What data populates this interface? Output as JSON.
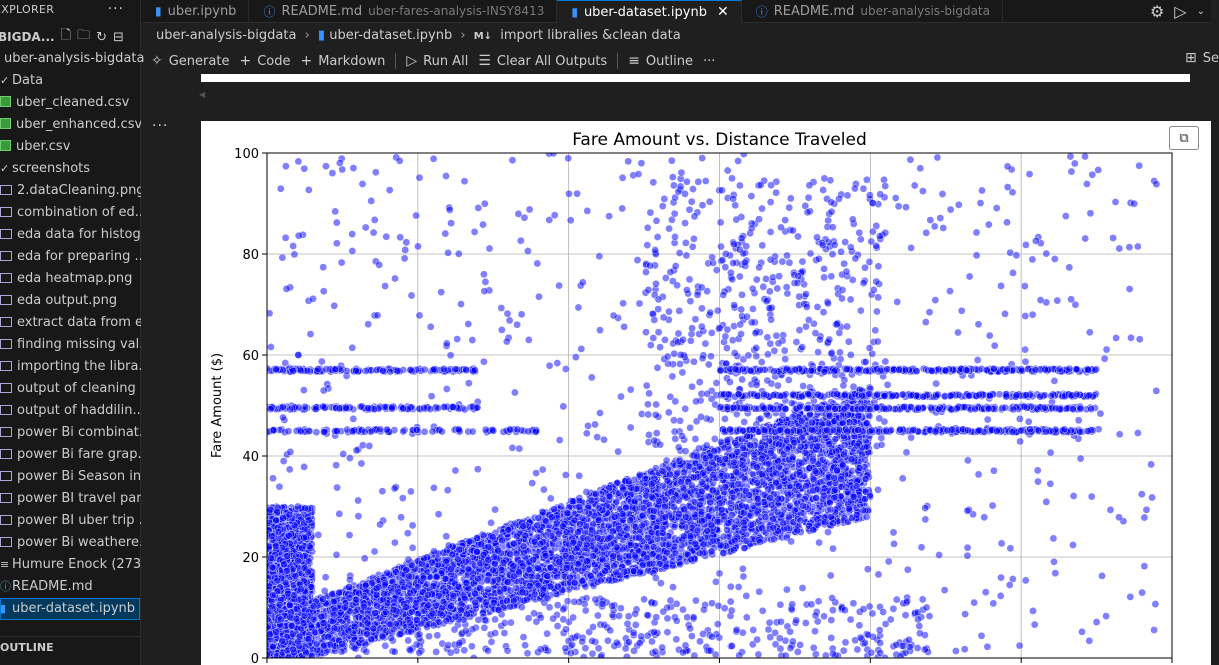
{
  "sidebar": {
    "header_label": "EXPLORER",
    "more_label": "···",
    "workspace_label": "BIGDA...",
    "toolbar_icons": [
      "new-file-icon",
      "new-folder-icon",
      "refresh-icon",
      "collapse-all-icon"
    ],
    "root_folder": "uber-analysis-bigdata",
    "items": [
      {
        "label": "Data",
        "kind": "folder",
        "indent": 0
      },
      {
        "label": "uber_cleaned.csv",
        "kind": "csv",
        "indent": 1
      },
      {
        "label": "uber_enhanced.csv",
        "kind": "csv",
        "indent": 1
      },
      {
        "label": "uber.csv",
        "kind": "csv",
        "indent": 1
      },
      {
        "label": "screenshots",
        "kind": "folder",
        "indent": 0
      },
      {
        "label": "2.dataCleaning.png",
        "kind": "png",
        "indent": 1
      },
      {
        "label": "combination of ed...",
        "kind": "png",
        "indent": 1
      },
      {
        "label": "eda data for histog...",
        "kind": "png",
        "indent": 1
      },
      {
        "label": "eda for preparing ...",
        "kind": "png",
        "indent": 1
      },
      {
        "label": "eda heatmap.png",
        "kind": "png",
        "indent": 1
      },
      {
        "label": "eda output.png",
        "kind": "png",
        "indent": 1
      },
      {
        "label": "extract data from e...",
        "kind": "png",
        "indent": 1
      },
      {
        "label": "finding missing val...",
        "kind": "png",
        "indent": 1
      },
      {
        "label": "importing the libra...",
        "kind": "png",
        "indent": 1
      },
      {
        "label": "output of cleaning ...",
        "kind": "png",
        "indent": 1
      },
      {
        "label": "output of haddilin...",
        "kind": "png",
        "indent": 1
      },
      {
        "label": "power Bi combinat...",
        "kind": "png",
        "indent": 1
      },
      {
        "label": "power Bi fare grap...",
        "kind": "png",
        "indent": 1
      },
      {
        "label": "power Bi Season in...",
        "kind": "png",
        "indent": 1
      },
      {
        "label": "power BI travel par...",
        "kind": "png",
        "indent": 1
      },
      {
        "label": "power BI uber trip ...",
        "kind": "png",
        "indent": 1
      },
      {
        "label": "power Bi weathere...",
        "kind": "png",
        "indent": 1
      },
      {
        "label": "Humure Enock (273...",
        "kind": "item",
        "indent": 0
      },
      {
        "label": "README.md",
        "kind": "md",
        "indent": 0
      },
      {
        "label": "uber-dataset.ipynb",
        "kind": "nb",
        "indent": 0,
        "selected": true
      }
    ],
    "outline_label": "OUTLINE"
  },
  "tabs": [
    {
      "label": "uber.ipynb",
      "desc": "",
      "icon": "notebook-icon",
      "active": false
    },
    {
      "label": "README.md",
      "desc": "uber-fares-analysis-INSY8413",
      "icon": "info-icon",
      "active": false
    },
    {
      "label": "uber-dataset.ipynb",
      "desc": "",
      "icon": "notebook-icon",
      "active": true
    },
    {
      "label": "README.md",
      "desc": "uber-analysis-bigdata",
      "icon": "info-icon",
      "active": false
    }
  ],
  "breadcrumb": {
    "folder": "uber-analysis-bigdata",
    "file": "uber-dataset.ipynb",
    "md_badge": "M↓",
    "section": "import libralies &clean data"
  },
  "toolbar": {
    "generate": "Generate",
    "code": "Code",
    "markdown": "Markdown",
    "run_all": "Run All",
    "clear_outputs": "Clear All Outputs",
    "outline": "Outline",
    "more": "···",
    "right_label": "Se"
  },
  "cell": {
    "gutter_label": "···"
  },
  "chart_data": {
    "type": "scatter",
    "title": "Fare Amount vs. Distance Traveled",
    "xlabel": "",
    "ylabel": "Fare Amount ($)",
    "ylim": [
      0,
      100
    ],
    "yticks": [
      0,
      20,
      40,
      60,
      80,
      100
    ],
    "xlim": [
      0,
      6
    ],
    "grid": true,
    "point_color": "#0000ff",
    "point_alpha": 0.5,
    "description": "dense cloud of points: fare rises with distance; horizontal bands near 45, 50, 52, 57",
    "bands_y": [
      45,
      49.5,
      52,
      57
    ]
  }
}
